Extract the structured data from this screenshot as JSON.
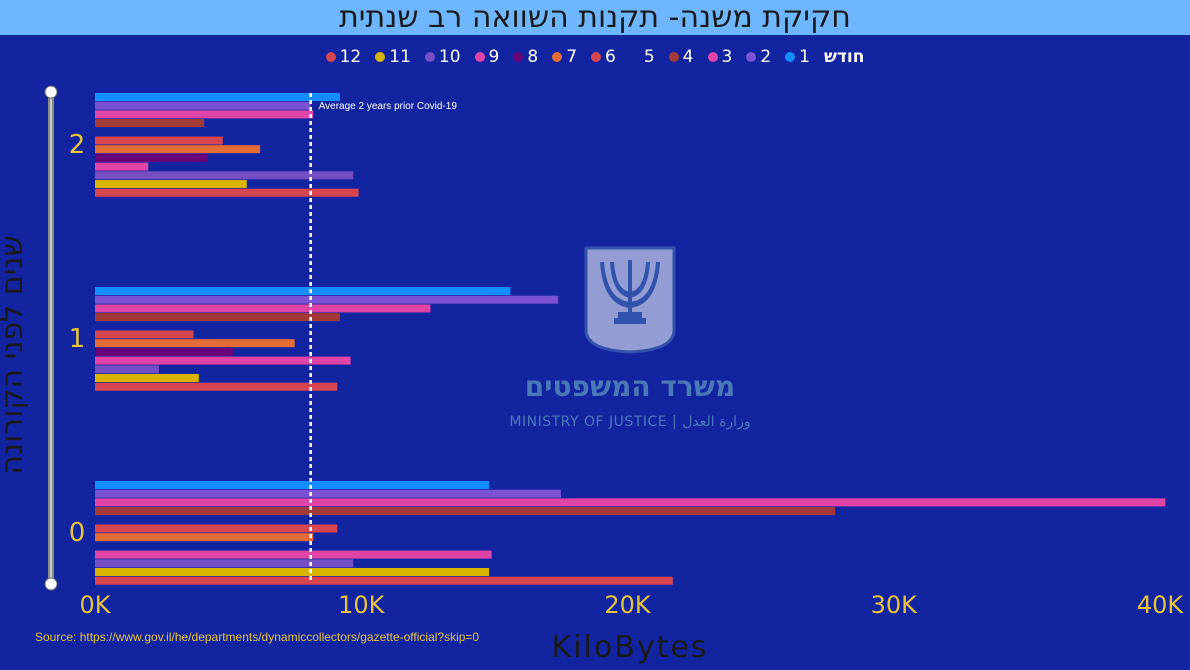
{
  "title": "חקיקת משנה- תקנות השוואה רב שנתית",
  "legend": {
    "title": "חודש",
    "items": [
      {
        "label": "1",
        "color": "#118DFF"
      },
      {
        "label": "2",
        "color": "#7B52D4"
      },
      {
        "label": "3",
        "color": "#E044A7"
      },
      {
        "label": "4",
        "color": "#A33A3A"
      },
      {
        "label": "5",
        "color": "#1324A0"
      },
      {
        "label": "6",
        "color": "#D64550"
      },
      {
        "label": "7",
        "color": "#E66C37"
      },
      {
        "label": "8",
        "color": "#6B007B"
      },
      {
        "label": "9",
        "color": "#E044A7"
      },
      {
        "label": "10",
        "color": "#744EC2"
      },
      {
        "label": "11",
        "color": "#D9B300"
      },
      {
        "label": "12",
        "color": "#D64550"
      }
    ]
  },
  "source": "Source: https://www.gov.il/he/departments/dynamiccollectors/gazette-official?skip=0",
  "watermark": {
    "hebrew": "משרד המשפטים",
    "english": "MINISTRY OF JUSTICE | وزارة العدل"
  },
  "chart_data": {
    "type": "bar",
    "orientation": "horizontal",
    "xlabel": "KiloBytes",
    "ylabel": "שנים לפני הקורונה",
    "xlim": [
      0,
      40000
    ],
    "xticks": [
      {
        "value": 0,
        "label": "0K"
      },
      {
        "value": 10000,
        "label": "10K"
      },
      {
        "value": 20000,
        "label": "20K"
      },
      {
        "value": 30000,
        "label": "30K"
      },
      {
        "value": 40000,
        "label": "40K"
      }
    ],
    "categories": [
      "2",
      "1",
      "0"
    ],
    "series_months": [
      "1",
      "2",
      "3",
      "4",
      "5",
      "6",
      "7",
      "8",
      "9",
      "10",
      "11",
      "12"
    ],
    "values": {
      "2": [
        9200,
        8100,
        8200,
        4100,
        0,
        4800,
        6200,
        4200,
        2000,
        9700,
        5700,
        9900
      ],
      "1": [
        15600,
        17400,
        12600,
        9200,
        0,
        3700,
        7500,
        5200,
        9600,
        2400,
        3900,
        9100
      ],
      "0": [
        14800,
        17500,
        40200,
        27800,
        0,
        9100,
        8200,
        0,
        14900,
        9700,
        14800,
        21700
      ]
    },
    "reference_line": {
      "value": 8100,
      "label": "Average 2 years prior Covid-19"
    },
    "legend_position": "top"
  }
}
